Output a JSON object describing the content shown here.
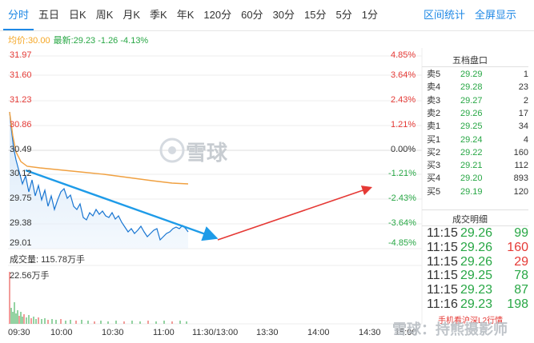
{
  "tabs": [
    "分时",
    "五日",
    "日K",
    "周K",
    "月K",
    "季K",
    "年K",
    "120分",
    "60分",
    "30分",
    "15分",
    "5分",
    "1分"
  ],
  "toolbar_right": {
    "interval_stats": "区间统计",
    "fullscreen": "全屏显示"
  },
  "subline": {
    "avg": "均价:30.00",
    "latest": "最新:29.23 -1.26 -4.13%"
  },
  "left_axis": [
    "31.97",
    "31.60",
    "31.23",
    "30.86",
    "30.49",
    "30.12",
    "29.75",
    "29.38",
    "29.01"
  ],
  "right_axis": [
    "4.85%",
    "3.64%",
    "2.43%",
    "1.21%",
    "0.00%",
    "-1.21%",
    "-2.43%",
    "-3.64%",
    "-4.85%"
  ],
  "order_book": {
    "title": "五档盘口",
    "rows": [
      {
        "label": "卖5",
        "price": "29.29",
        "vol": "1"
      },
      {
        "label": "卖4",
        "price": "29.28",
        "vol": "23"
      },
      {
        "label": "卖3",
        "price": "29.27",
        "vol": "2"
      },
      {
        "label": "卖2",
        "price": "29.26",
        "vol": "17"
      },
      {
        "label": "卖1",
        "price": "29.25",
        "vol": "34"
      },
      {
        "label": "买1",
        "price": "29.24",
        "vol": "4"
      },
      {
        "label": "买2",
        "price": "29.22",
        "vol": "160"
      },
      {
        "label": "买3",
        "price": "29.21",
        "vol": "112"
      },
      {
        "label": "买4",
        "price": "29.20",
        "vol": "893"
      },
      {
        "label": "买5",
        "price": "29.19",
        "vol": "120"
      }
    ]
  },
  "trade_detail": {
    "title": "成交明细",
    "rows": [
      {
        "time": "11:15",
        "price": "29.26",
        "vol": "99"
      },
      {
        "time": "11:15",
        "price": "29.26",
        "vol": "160"
      },
      {
        "time": "11:15",
        "price": "29.26",
        "vol": "29"
      },
      {
        "time": "11:15",
        "price": "29.25",
        "vol": "78"
      },
      {
        "time": "11:15",
        "price": "29.23",
        "vol": "87"
      },
      {
        "time": "11:16",
        "price": "29.23",
        "vol": "198"
      }
    ],
    "footer": "手机看沪深L2行情"
  },
  "volume": {
    "total": "成交量: 115.78万手",
    "max_label": "22.56万手"
  },
  "x_axis": [
    "09:30",
    "10:00",
    "10:30",
    "11:00",
    "11:30/13:00",
    "13:30",
    "14:00",
    "14:30",
    "15:00"
  ],
  "watermark": {
    "logo": "雪球",
    "bottom": "雪球：持熊摄影师"
  }
}
